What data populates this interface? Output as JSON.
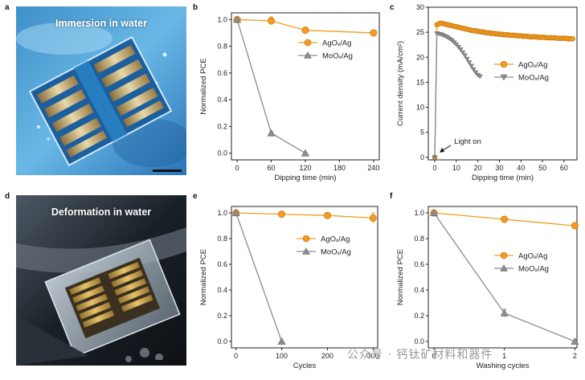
{
  "panels": {
    "a": {
      "letter": "a",
      "title": "Immersion in water"
    },
    "d": {
      "letter": "d",
      "title": "Deformation in water"
    }
  },
  "watermark": "公众号 · 钙钛矿材料和器件",
  "chart_data": [
    {
      "id": "b",
      "letter": "b",
      "type": "line",
      "xlabel": "Dipping time (min)",
      "ylabel": "Normalized PCE",
      "xlim": [
        -10,
        250
      ],
      "ylim": [
        -0.05,
        1.05
      ],
      "xticks": [
        0,
        60,
        120,
        180,
        240
      ],
      "yticks": [
        0.0,
        0.2,
        0.4,
        0.6,
        0.8,
        1.0
      ],
      "ytick_labels": [
        "0.0",
        "0.2",
        "0.4",
        "0.6",
        "0.8",
        "1.0"
      ],
      "legend": "top-right",
      "series": [
        {
          "name": "AgOₓ/Ag",
          "color": "#f39c1f",
          "marker": "circle",
          "x": [
            0,
            60,
            120,
            240
          ],
          "y": [
            1.0,
            0.99,
            0.92,
            0.9
          ],
          "err": [
            0,
            0.03,
            0.02,
            0
          ]
        },
        {
          "name": "MoOₓ/Ag",
          "color": "#8c8c8c",
          "marker": "triangle",
          "x": [
            0,
            60,
            120
          ],
          "y": [
            1.0,
            0.15,
            0.0
          ],
          "err": [
            0,
            0.01,
            0
          ]
        }
      ]
    },
    {
      "id": "c",
      "letter": "c",
      "type": "line",
      "xlabel": "Dipping time (min)",
      "ylabel": "Current density (mA/cm²)",
      "xlim": [
        -3,
        66
      ],
      "ylim": [
        -0.5,
        30
      ],
      "xticks": [
        0,
        10,
        20,
        30,
        40,
        50,
        60
      ],
      "yticks": [
        0,
        5,
        10,
        15,
        20,
        25,
        30
      ],
      "ytick_labels": [
        "0",
        "5",
        "10",
        "15",
        "20",
        "25",
        "30"
      ],
      "legend": "middle-right",
      "annotation": "Light on",
      "series": [
        {
          "name": "AgOₓ/Ag",
          "color": "#f39c1f",
          "marker": "circle",
          "x": [
            0,
            1,
            2,
            3,
            4,
            5,
            6,
            7,
            8,
            9,
            10,
            11,
            12,
            13,
            14,
            15,
            16,
            17,
            18,
            19,
            20,
            21,
            22,
            23,
            24,
            25,
            26,
            27,
            28,
            29,
            30,
            31,
            32,
            33,
            34,
            35,
            36,
            37,
            38,
            39,
            40,
            41,
            42,
            43,
            44,
            45,
            46,
            47,
            48,
            49,
            50,
            51,
            52,
            53,
            54,
            55,
            56,
            57,
            58,
            59,
            60,
            61,
            62,
            63,
            64
          ],
          "y": [
            0,
            26.5,
            26.7,
            26.8,
            26.7,
            26.6,
            26.5,
            26.4,
            26.3,
            26.2,
            26.1,
            26.0,
            25.9,
            25.8,
            25.7,
            25.6,
            25.5,
            25.4,
            25.3,
            25.3,
            25.2,
            25.1,
            25.1,
            25.0,
            24.9,
            24.9,
            24.8,
            24.8,
            24.7,
            24.7,
            24.6,
            24.6,
            24.5,
            24.5,
            24.5,
            24.4,
            24.4,
            24.4,
            24.3,
            24.3,
            24.3,
            24.2,
            24.2,
            24.2,
            24.1,
            24.1,
            24.1,
            24.1,
            24.0,
            24.0,
            24.0,
            24.0,
            23.9,
            23.9,
            23.9,
            23.9,
            23.9,
            23.8,
            23.8,
            23.8,
            23.8,
            23.8,
            23.7,
            23.7,
            23.7
          ]
        },
        {
          "name": "MoOₓ/Ag",
          "color": "#8c8c8c",
          "marker": "triangle-down",
          "x": [
            0,
            1,
            2,
            3,
            4,
            5,
            6,
            7,
            8,
            9,
            10,
            11,
            12,
            13,
            14,
            15,
            16,
            17,
            18,
            19,
            20,
            21
          ],
          "y": [
            0,
            24.8,
            24.7,
            24.6,
            24.4,
            24.2,
            24.0,
            23.7,
            23.4,
            23.0,
            22.6,
            22.1,
            21.6,
            21.0,
            20.4,
            19.7,
            19.0,
            18.3,
            17.6,
            17.0,
            16.5,
            16.2
          ]
        }
      ]
    },
    {
      "id": "e",
      "letter": "e",
      "type": "line",
      "xlabel": "Cycles",
      "ylabel": "Normalized PCE",
      "xlim": [
        -10,
        310
      ],
      "ylim": [
        -0.05,
        1.05
      ],
      "xticks": [
        0,
        100,
        200,
        300
      ],
      "yticks": [
        0.0,
        0.2,
        0.4,
        0.6,
        0.8,
        1.0
      ],
      "ytick_labels": [
        "0.0",
        "0.2",
        "0.4",
        "0.6",
        "0.8",
        "1.0"
      ],
      "legend": "top-right",
      "series": [
        {
          "name": "AgOₓ/Ag",
          "color": "#f39c1f",
          "marker": "circle",
          "x": [
            0,
            100,
            200,
            300
          ],
          "y": [
            1.0,
            0.99,
            0.98,
            0.96
          ],
          "err": [
            0,
            0,
            0.02,
            0.04
          ]
        },
        {
          "name": "MoOₓ/Ag",
          "color": "#8c8c8c",
          "marker": "triangle",
          "x": [
            0,
            100
          ],
          "y": [
            1.0,
            0.0
          ],
          "err": [
            0,
            0
          ]
        }
      ]
    },
    {
      "id": "f",
      "letter": "f",
      "type": "line",
      "xlabel": "Washing cycles",
      "ylabel": "Normalized PCE",
      "xlim": [
        -0.08,
        2.03
      ],
      "ylim": [
        -0.05,
        1.05
      ],
      "xticks": [
        0,
        1,
        2
      ],
      "yticks": [
        0.0,
        0.2,
        0.4,
        0.6,
        0.8,
        1.0
      ],
      "ytick_labels": [
        "0.0",
        "0.2",
        "0.4",
        "0.6",
        "0.8",
        "1.0"
      ],
      "legend": "top-right",
      "series": [
        {
          "name": "AgOₓ/Ag",
          "color": "#f39c1f",
          "marker": "circle",
          "x": [
            0,
            1,
            2
          ],
          "y": [
            1.0,
            0.95,
            0.9
          ],
          "err": [
            0,
            0.02,
            0
          ]
        },
        {
          "name": "MoOₓ/Ag",
          "color": "#8c8c8c",
          "marker": "triangle",
          "x": [
            0,
            1,
            2
          ],
          "y": [
            1.0,
            0.22,
            0.0
          ],
          "err": [
            0,
            0.03,
            0
          ]
        }
      ]
    }
  ]
}
